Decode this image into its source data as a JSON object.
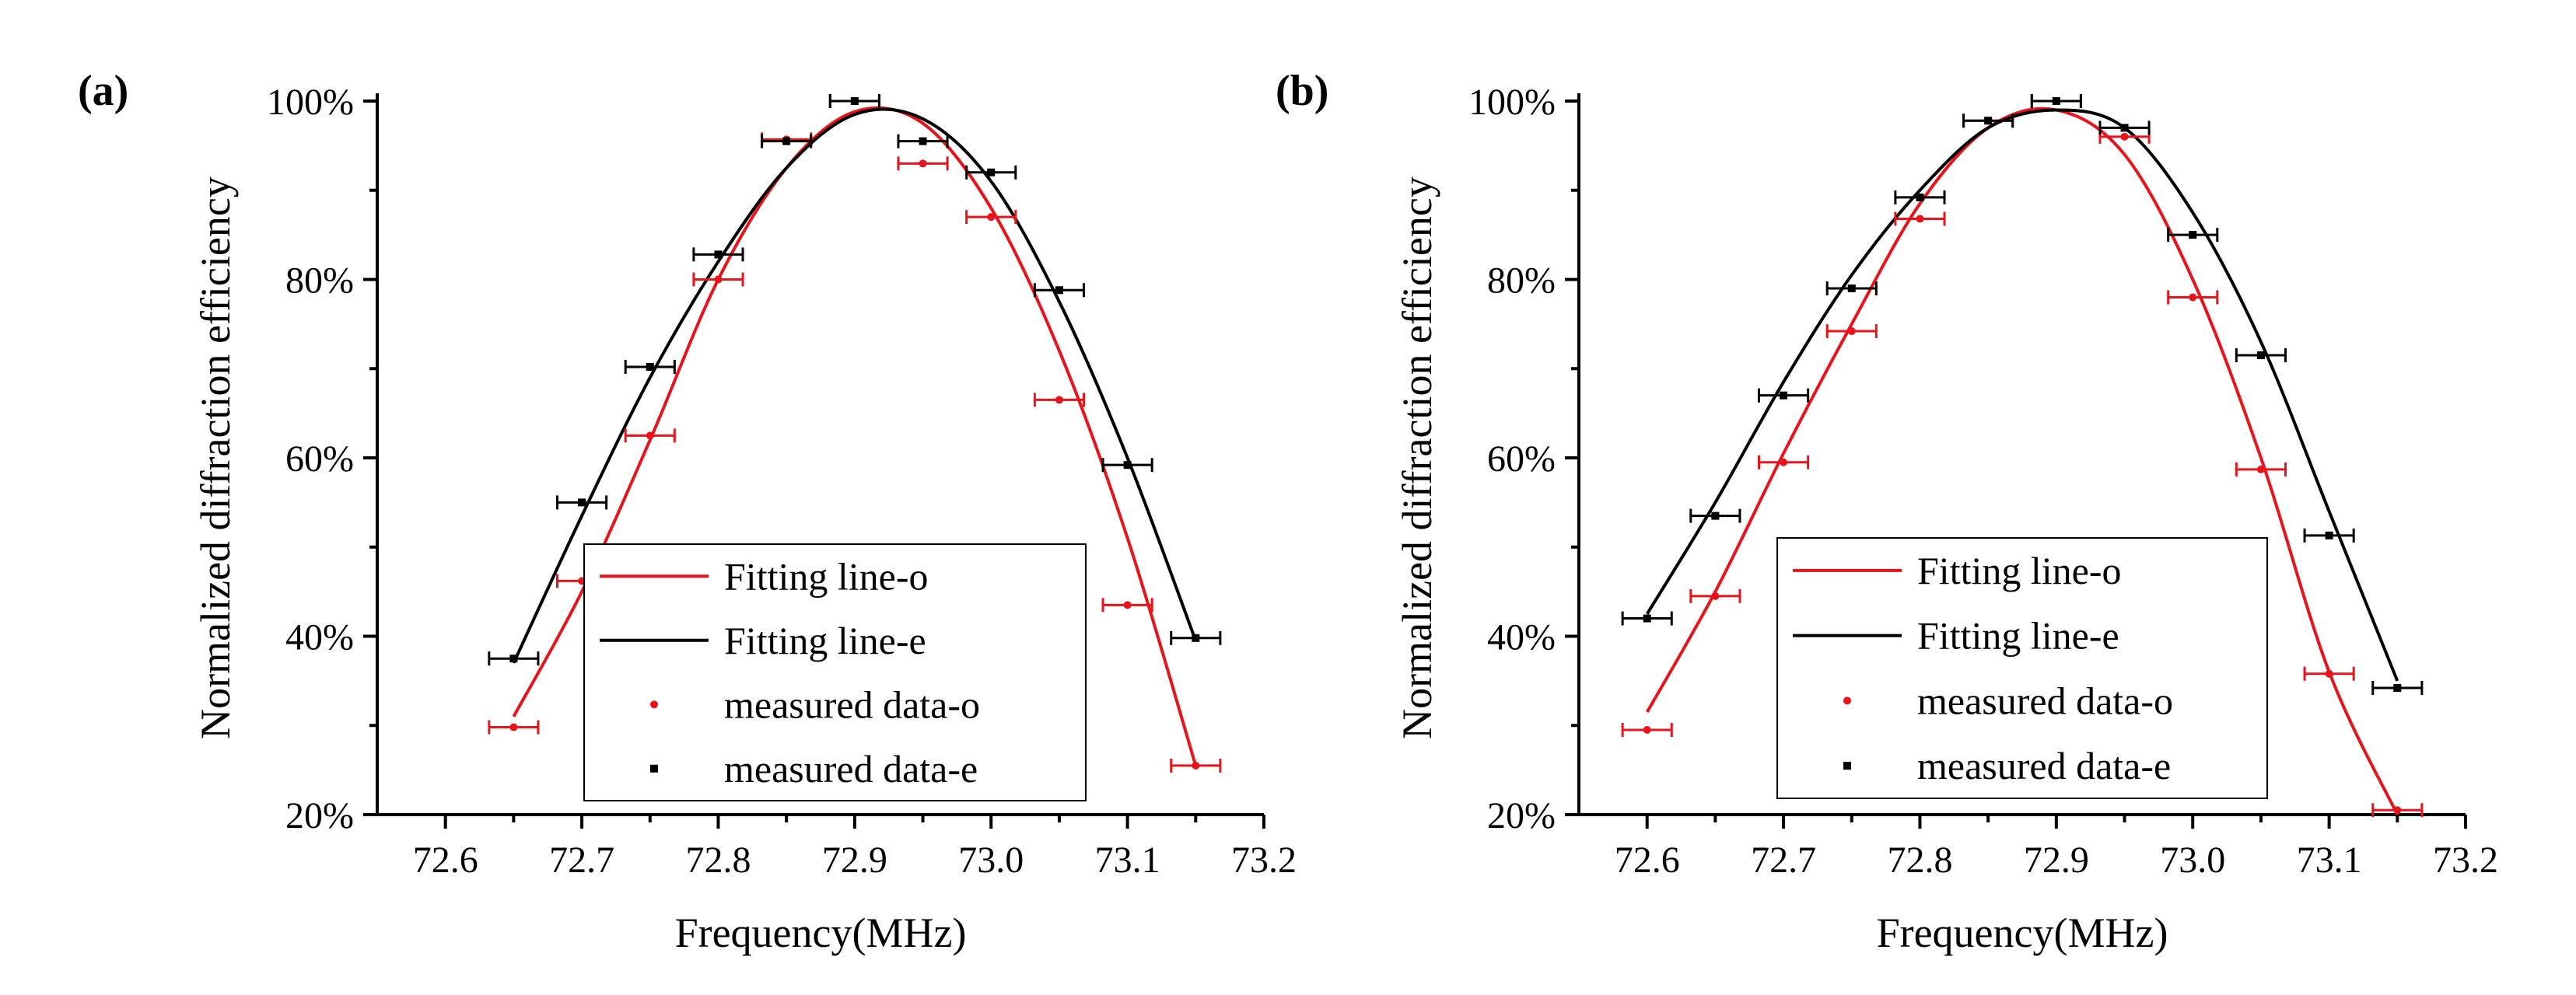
{
  "chart_data": [
    {
      "type": "scatter",
      "panel_label": "(a)",
      "xlabel": "Frequency(MHz)",
      "ylabel": "Normalized diffraction efficiency",
      "xlim": [
        72.55,
        73.2
      ],
      "ylim": [
        20,
        100
      ],
      "xticks": [
        "72.6",
        "72.7",
        "72.8",
        "72.9",
        "73.0",
        "73.1",
        "73.2"
      ],
      "xtick_values": [
        72.6,
        72.7,
        72.8,
        72.9,
        73.0,
        73.1,
        73.2
      ],
      "yticks": [
        "20%",
        "40%",
        "60%",
        "80%",
        "100%"
      ],
      "ytick_values": [
        20,
        40,
        60,
        80,
        100
      ],
      "xerr": 0.01,
      "legend": {
        "placement": "lower-right",
        "entries": [
          "Fitting line-o",
          "Fitting line-e",
          "measured data-o",
          "measured data-e"
        ]
      },
      "series": [
        {
          "name": "measured data-o",
          "kind": "points",
          "color": "#e8141b",
          "x": [
            72.65,
            72.7,
            72.75,
            72.8,
            72.85,
            72.9,
            72.95,
            73.0,
            73.05,
            73.1,
            73.15
          ],
          "y": [
            29.8,
            46.2,
            62.5,
            80.0,
            95.7,
            100.0,
            93.0,
            87.0,
            66.5,
            43.5,
            25.5
          ]
        },
        {
          "name": "measured data-e",
          "kind": "points",
          "color": "#000000",
          "x": [
            72.65,
            72.7,
            72.75,
            72.8,
            72.85,
            72.9,
            72.95,
            73.0,
            73.05,
            73.1,
            73.15
          ],
          "y": [
            37.5,
            55.0,
            70.2,
            82.8,
            95.5,
            100.0,
            95.5,
            92.0,
            78.8,
            59.2,
            39.8
          ]
        },
        {
          "name": "Fitting line-o",
          "kind": "line",
          "color": "#e8141b",
          "x": [
            72.65,
            72.7,
            72.75,
            72.8,
            72.85,
            72.9,
            72.95,
            73.0,
            73.05,
            73.1,
            73.15
          ],
          "y": [
            31.0,
            45.0,
            62.0,
            80.0,
            92.5,
            98.8,
            97.5,
            88.0,
            72.0,
            51.0,
            25.5
          ]
        },
        {
          "name": "Fitting line-e",
          "kind": "line",
          "color": "#000000",
          "x": [
            72.65,
            72.7,
            72.75,
            72.8,
            72.85,
            72.9,
            72.95,
            73.0,
            73.05,
            73.1,
            73.15
          ],
          "y": [
            37.0,
            53.5,
            69.0,
            82.0,
            92.5,
            98.5,
            98.0,
            91.0,
            77.5,
            60.0,
            39.5
          ]
        }
      ]
    },
    {
      "type": "scatter",
      "panel_label": "(b)",
      "xlabel": "Frequency(MHz)",
      "ylabel": "Normalized diffraction efficiency",
      "xlim": [
        72.55,
        73.2
      ],
      "ylim": [
        20,
        100
      ],
      "xticks": [
        "72.6",
        "72.7",
        "72.8",
        "72.9",
        "73.0",
        "73.1",
        "73.2"
      ],
      "xtick_values": [
        72.6,
        72.7,
        72.8,
        72.9,
        73.0,
        73.1,
        73.2
      ],
      "yticks": [
        "20%",
        "40%",
        "60%",
        "80%",
        "100%"
      ],
      "ytick_values": [
        20,
        40,
        60,
        80,
        100
      ],
      "xerr": 0.01,
      "legend": {
        "placement": "lower-right",
        "entries": [
          "Fitting line-o",
          "Fitting line-e",
          "measured data-o",
          "measured data-e"
        ]
      },
      "series": [
        {
          "name": "measured data-o",
          "kind": "points",
          "color": "#e8141b",
          "x": [
            72.6,
            72.65,
            72.7,
            72.75,
            72.8,
            72.85,
            72.9,
            72.95,
            73.0,
            73.05,
            73.1,
            73.15
          ],
          "y": [
            29.5,
            44.5,
            59.5,
            74.2,
            86.8,
            97.8,
            100.0,
            96.0,
            78.0,
            58.7,
            35.8,
            20.5
          ]
        },
        {
          "name": "measured data-e",
          "kind": "points",
          "color": "#000000",
          "x": [
            72.6,
            72.65,
            72.7,
            72.75,
            72.8,
            72.85,
            72.9,
            72.95,
            73.0,
            73.05,
            73.1,
            73.15
          ],
          "y": [
            42.0,
            53.5,
            67.0,
            79.0,
            89.2,
            97.8,
            100.0,
            97.0,
            85.0,
            71.5,
            51.3,
            34.2
          ]
        },
        {
          "name": "Fitting line-o",
          "kind": "line",
          "color": "#e8141b",
          "x": [
            72.6,
            72.65,
            72.7,
            72.75,
            72.8,
            72.85,
            72.9,
            72.95,
            73.0,
            73.05,
            73.1,
            73.15
          ],
          "y": [
            31.5,
            45.0,
            60.5,
            75.0,
            88.5,
            97.0,
            99.0,
            94.0,
            80.0,
            60.0,
            36.0,
            20.0
          ]
        },
        {
          "name": "Fitting line-e",
          "kind": "line",
          "color": "#000000",
          "x": [
            72.6,
            72.65,
            72.7,
            72.75,
            72.8,
            72.85,
            72.9,
            72.95,
            73.0,
            73.05,
            73.1,
            73.15
          ],
          "y": [
            42.5,
            55.0,
            68.5,
            80.5,
            90.0,
            97.0,
            99.0,
            97.0,
            87.5,
            73.0,
            54.0,
            35.0
          ]
        }
      ]
    }
  ]
}
